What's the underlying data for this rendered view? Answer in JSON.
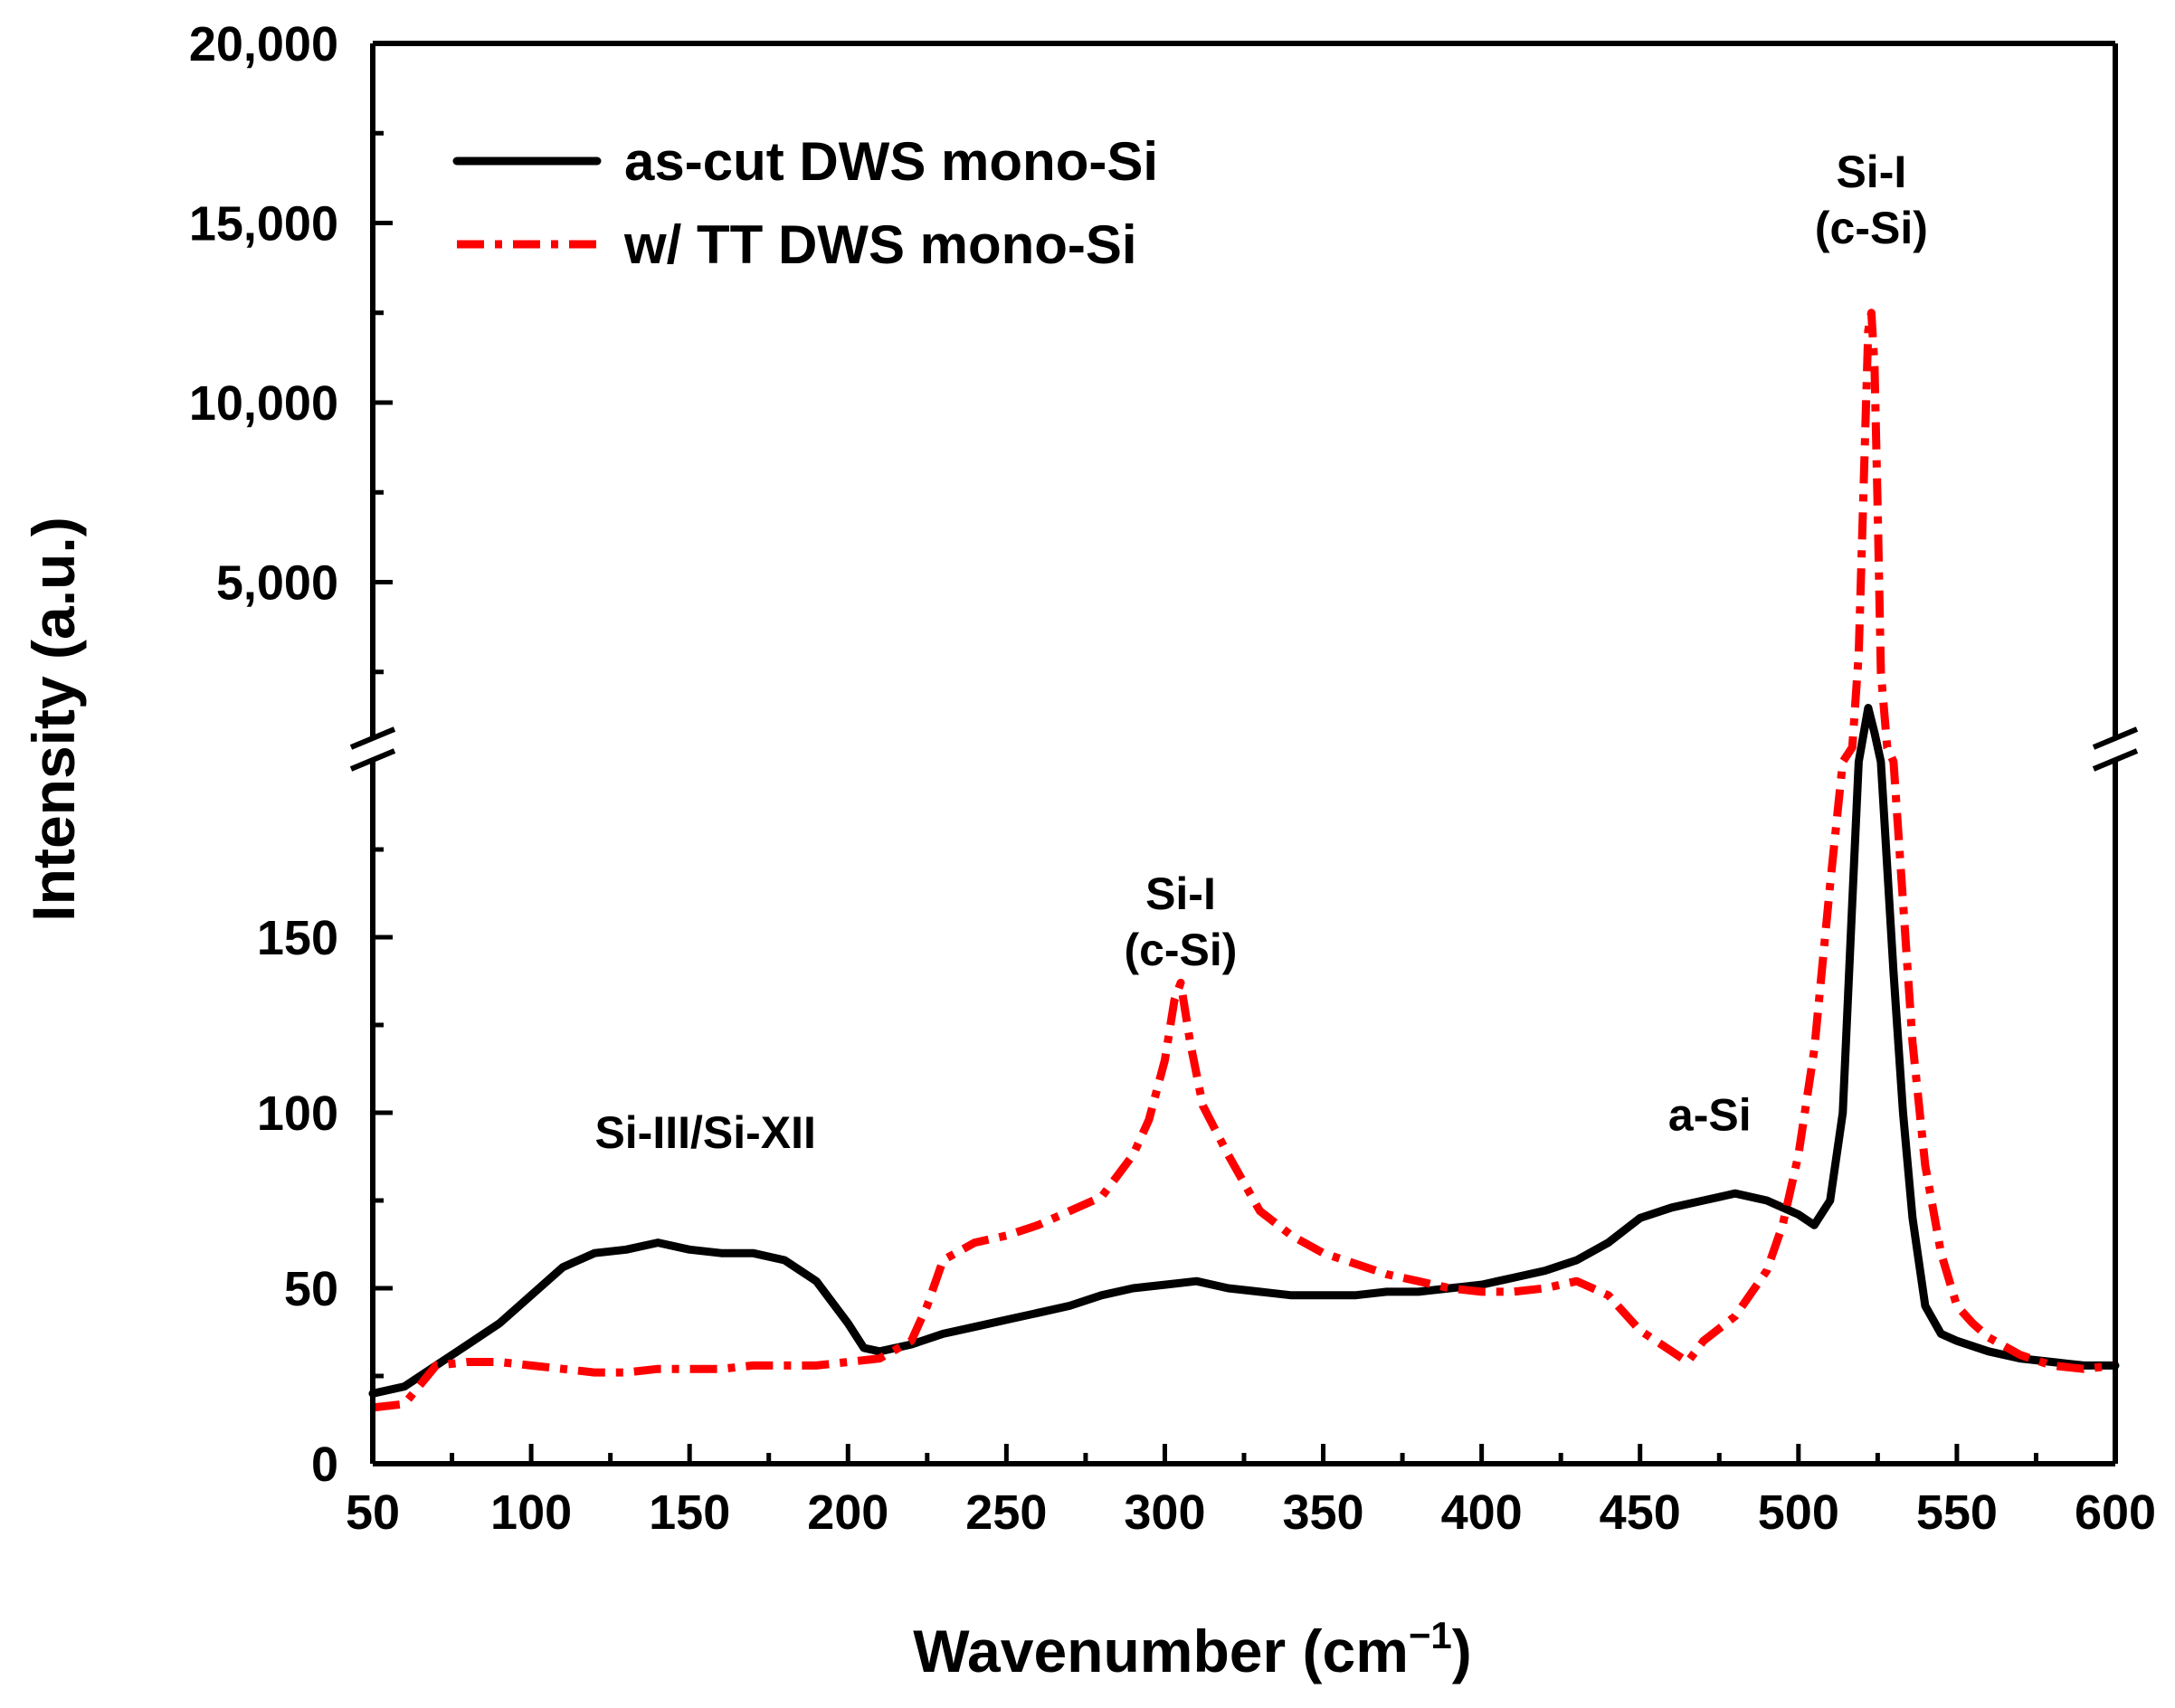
{
  "chart_data": {
    "type": "line",
    "title": "",
    "xlabel": "Wavenumber (cm",
    "xlabel_sup": "−1",
    "xlabel_close": ")",
    "ylabel": "Intensity (a.u.)",
    "xlim": [
      50,
      600
    ],
    "x_ticks": [
      50,
      100,
      150,
      200,
      250,
      300,
      350,
      400,
      450,
      500,
      550,
      600
    ],
    "x_tick_labels": [
      "50",
      "100",
      "150",
      "200",
      "250",
      "300",
      "350",
      "400",
      "450",
      "500",
      "550",
      "600"
    ],
    "y_axis_broken": true,
    "y_lower_range": [
      0,
      200
    ],
    "y_lower_ticks": [
      0,
      50,
      100,
      150
    ],
    "y_lower_tick_labels": [
      "0",
      "50",
      "100",
      "150"
    ],
    "y_upper_range": [
      0,
      20000
    ],
    "y_upper_ticks": [
      5000,
      10000,
      15000,
      20000
    ],
    "y_upper_tick_labels": [
      "5,000",
      "10,000",
      "15,000",
      "20,000"
    ],
    "legend_position": "top-left",
    "series": [
      {
        "name": "as-cut DWS mono-Si",
        "color": "#000000",
        "style": "solid",
        "points": [
          [
            50,
            20
          ],
          [
            60,
            22
          ],
          [
            70,
            28
          ],
          [
            80,
            34
          ],
          [
            90,
            40
          ],
          [
            100,
            48
          ],
          [
            110,
            56
          ],
          [
            120,
            60
          ],
          [
            130,
            61
          ],
          [
            140,
            63
          ],
          [
            150,
            61
          ],
          [
            160,
            60
          ],
          [
            170,
            60
          ],
          [
            180,
            58
          ],
          [
            190,
            52
          ],
          [
            200,
            40
          ],
          [
            205,
            33
          ],
          [
            210,
            32
          ],
          [
            220,
            34
          ],
          [
            230,
            37
          ],
          [
            240,
            39
          ],
          [
            250,
            41
          ],
          [
            260,
            43
          ],
          [
            270,
            45
          ],
          [
            280,
            48
          ],
          [
            290,
            50
          ],
          [
            300,
            51
          ],
          [
            310,
            52
          ],
          [
            320,
            50
          ],
          [
            330,
            49
          ],
          [
            340,
            48
          ],
          [
            350,
            48
          ],
          [
            360,
            48
          ],
          [
            370,
            49
          ],
          [
            380,
            49
          ],
          [
            390,
            50
          ],
          [
            400,
            51
          ],
          [
            410,
            53
          ],
          [
            420,
            55
          ],
          [
            430,
            58
          ],
          [
            440,
            63
          ],
          [
            450,
            70
          ],
          [
            460,
            73
          ],
          [
            470,
            75
          ],
          [
            480,
            77
          ],
          [
            490,
            75
          ],
          [
            500,
            71
          ],
          [
            505,
            68
          ],
          [
            510,
            75
          ],
          [
            514,
            100
          ],
          [
            517,
            160
          ],
          [
            519,
            200
          ],
          [
            522,
            1500
          ],
          [
            524,
            800
          ],
          [
            526,
            200
          ],
          [
            528,
            170
          ],
          [
            530,
            140
          ],
          [
            533,
            100
          ],
          [
            536,
            70
          ],
          [
            540,
            45
          ],
          [
            545,
            37
          ],
          [
            550,
            35
          ],
          [
            560,
            32
          ],
          [
            570,
            30
          ],
          [
            580,
            29
          ],
          [
            590,
            28
          ],
          [
            600,
            28
          ]
        ]
      },
      {
        "name": "w/  TT DWS mono-Si",
        "color": "#ff0000",
        "style": "dash-dot",
        "points": [
          [
            50,
            16
          ],
          [
            60,
            17
          ],
          [
            70,
            28
          ],
          [
            80,
            29
          ],
          [
            90,
            29
          ],
          [
            100,
            28
          ],
          [
            110,
            27
          ],
          [
            120,
            26
          ],
          [
            130,
            26
          ],
          [
            140,
            27
          ],
          [
            150,
            27
          ],
          [
            160,
            27
          ],
          [
            170,
            28
          ],
          [
            180,
            28
          ],
          [
            190,
            28
          ],
          [
            200,
            29
          ],
          [
            210,
            30
          ],
          [
            220,
            35
          ],
          [
            225,
            45
          ],
          [
            230,
            58
          ],
          [
            240,
            63
          ],
          [
            250,
            65
          ],
          [
            260,
            68
          ],
          [
            270,
            72
          ],
          [
            280,
            76
          ],
          [
            290,
            88
          ],
          [
            295,
            98
          ],
          [
            300,
            115
          ],
          [
            303,
            132
          ],
          [
            305,
            137
          ],
          [
            308,
            120
          ],
          [
            312,
            102
          ],
          [
            320,
            88
          ],
          [
            330,
            72
          ],
          [
            340,
            65
          ],
          [
            350,
            60
          ],
          [
            360,
            57
          ],
          [
            370,
            54
          ],
          [
            380,
            52
          ],
          [
            390,
            50
          ],
          [
            400,
            49
          ],
          [
            410,
            49
          ],
          [
            420,
            50
          ],
          [
            430,
            52
          ],
          [
            440,
            48
          ],
          [
            450,
            38
          ],
          [
            460,
            32
          ],
          [
            465,
            29
          ],
          [
            470,
            35
          ],
          [
            480,
            42
          ],
          [
            490,
            55
          ],
          [
            495,
            68
          ],
          [
            500,
            88
          ],
          [
            505,
            118
          ],
          [
            510,
            165
          ],
          [
            514,
            200
          ],
          [
            517,
            400
          ],
          [
            519,
            3000
          ],
          [
            521,
            9000
          ],
          [
            522,
            12000
          ],
          [
            523,
            12500
          ],
          [
            524,
            11000
          ],
          [
            525,
            7000
          ],
          [
            526,
            2500
          ],
          [
            528,
            400
          ],
          [
            530,
            200
          ],
          [
            533,
            160
          ],
          [
            536,
            120
          ],
          [
            540,
            85
          ],
          [
            545,
            60
          ],
          [
            550,
            45
          ],
          [
            555,
            40
          ],
          [
            560,
            36
          ],
          [
            570,
            31
          ],
          [
            580,
            28
          ],
          [
            590,
            27
          ],
          [
            600,
            28
          ]
        ]
      }
    ],
    "annotations": [
      {
        "lines": [
          "Si-III/Si-XII"
        ],
        "x": 155,
        "y": 90,
        "panel": "lower"
      },
      {
        "lines": [
          "Si-I",
          "(c-Si)"
        ],
        "x": 305,
        "y": 158,
        "panel": "lower"
      },
      {
        "lines": [
          "a-Si"
        ],
        "x": 472,
        "y": 95,
        "panel": "lower"
      },
      {
        "lines": [
          "Si-I",
          "(c-Si)"
        ],
        "x": 523,
        "y": 16000,
        "panel": "upper"
      }
    ]
  }
}
